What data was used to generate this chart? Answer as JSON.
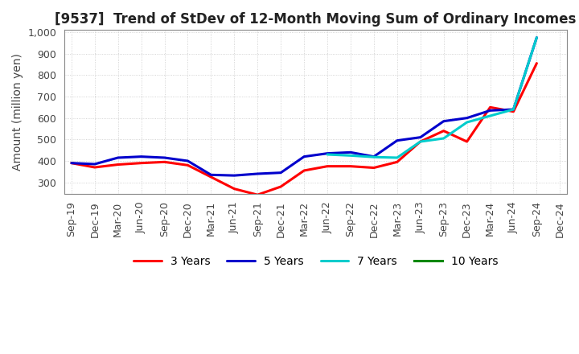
{
  "title": "[9537]  Trend of StDev of 12-Month Moving Sum of Ordinary Incomes",
  "ylabel": "Amount (million yen)",
  "ylim": [
    248,
    1010
  ],
  "yticks": [
    300,
    400,
    500,
    600,
    700,
    800,
    900,
    1000
  ],
  "legend_labels": [
    "3 Years",
    "5 Years",
    "7 Years",
    "10 Years"
  ],
  "legend_colors": [
    "#ff0000",
    "#0000cc",
    "#00cccc",
    "#008800"
  ],
  "x_labels": [
    "Sep-19",
    "Dec-19",
    "Mar-20",
    "Jun-20",
    "Sep-20",
    "Dec-20",
    "Mar-21",
    "Jun-21",
    "Sep-21",
    "Dec-21",
    "Mar-22",
    "Jun-22",
    "Sep-22",
    "Dec-22",
    "Mar-23",
    "Jun-23",
    "Sep-23",
    "Dec-23",
    "Mar-24",
    "Jun-24",
    "Sep-24",
    "Dec-24"
  ],
  "series_3y": [
    390,
    370,
    383,
    390,
    395,
    380,
    325,
    270,
    242,
    280,
    355,
    375,
    375,
    368,
    395,
    490,
    540,
    490,
    650,
    630,
    855,
    null
  ],
  "series_5y": [
    390,
    385,
    415,
    420,
    415,
    400,
    335,
    332,
    340,
    345,
    420,
    435,
    440,
    420,
    495,
    510,
    585,
    600,
    635,
    640,
    975,
    null
  ],
  "series_7y": [
    null,
    null,
    null,
    null,
    null,
    null,
    null,
    null,
    null,
    null,
    null,
    430,
    425,
    418,
    415,
    490,
    505,
    580,
    610,
    640,
    975,
    null
  ],
  "series_10y": [
    null,
    null,
    null,
    null,
    null,
    null,
    null,
    null,
    null,
    null,
    null,
    null,
    null,
    null,
    null,
    null,
    null,
    null,
    null,
    null,
    null,
    null
  ],
  "background_color": "#ffffff",
  "grid_color": "#c8c8c8",
  "title_fontsize": 12,
  "axis_label_fontsize": 10,
  "tick_fontsize": 9
}
